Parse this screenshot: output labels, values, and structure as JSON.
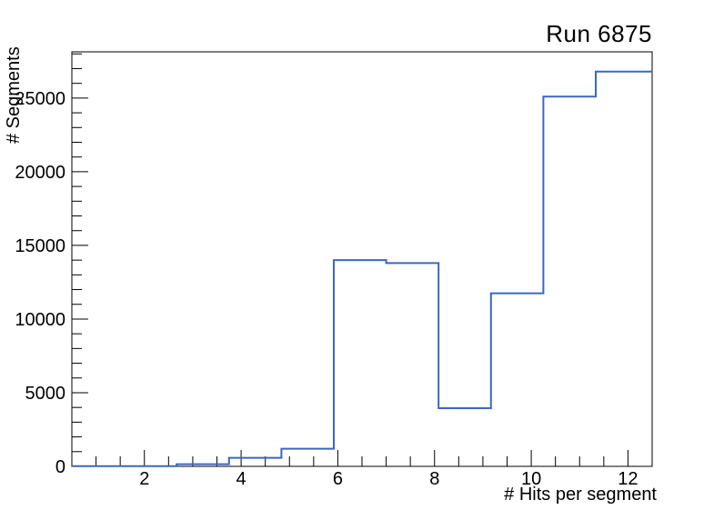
{
  "canvas": {
    "background": "#ffffff",
    "frame_color": "#000000",
    "text_color": "#000000"
  },
  "plot": {
    "title": "Run 6875",
    "x_axis": {
      "title": "# Hits per segment",
      "range": [
        0.5,
        12.5
      ],
      "major_ticks": [
        {
          "value": 2,
          "label": "2"
        },
        {
          "value": 4,
          "label": "4"
        },
        {
          "value": 6,
          "label": "6"
        },
        {
          "value": 8,
          "label": "8"
        },
        {
          "value": 10,
          "label": "10"
        },
        {
          "value": 12,
          "label": "12"
        }
      ],
      "minor_tick_step": 0.5
    },
    "y_axis": {
      "title": "# Segments",
      "range": [
        0,
        28140
      ],
      "major_ticks": [
        {
          "value": 0,
          "label": "0"
        },
        {
          "value": 5000,
          "label": "5000"
        },
        {
          "value": 10000,
          "label": "10000"
        },
        {
          "value": 15000,
          "label": "15000"
        },
        {
          "value": 20000,
          "label": "20000"
        },
        {
          "value": 25000,
          "label": "25000"
        }
      ],
      "minor_tick_step": 1000
    }
  },
  "chart_data": {
    "type": "bar",
    "subtype": "step-histogram-outline",
    "title": "Run 6875",
    "xlabel": "# Hits per segment",
    "ylabel": "# Segments",
    "xlim": [
      0.5,
      12.5
    ],
    "ylim": [
      0,
      28140
    ],
    "grid": false,
    "legend": false,
    "line_color": "#3b66c4",
    "line_width": 2,
    "bin_edges": [
      0.5,
      1.583,
      2.667,
      3.75,
      4.833,
      5.917,
      7.0,
      8.083,
      9.167,
      10.25,
      11.333,
      12.417,
      13.5
    ],
    "values": [
      10,
      20,
      150,
      580,
      1200,
      14000,
      13800,
      3950,
      11750,
      25100,
      26800,
      26800
    ]
  }
}
